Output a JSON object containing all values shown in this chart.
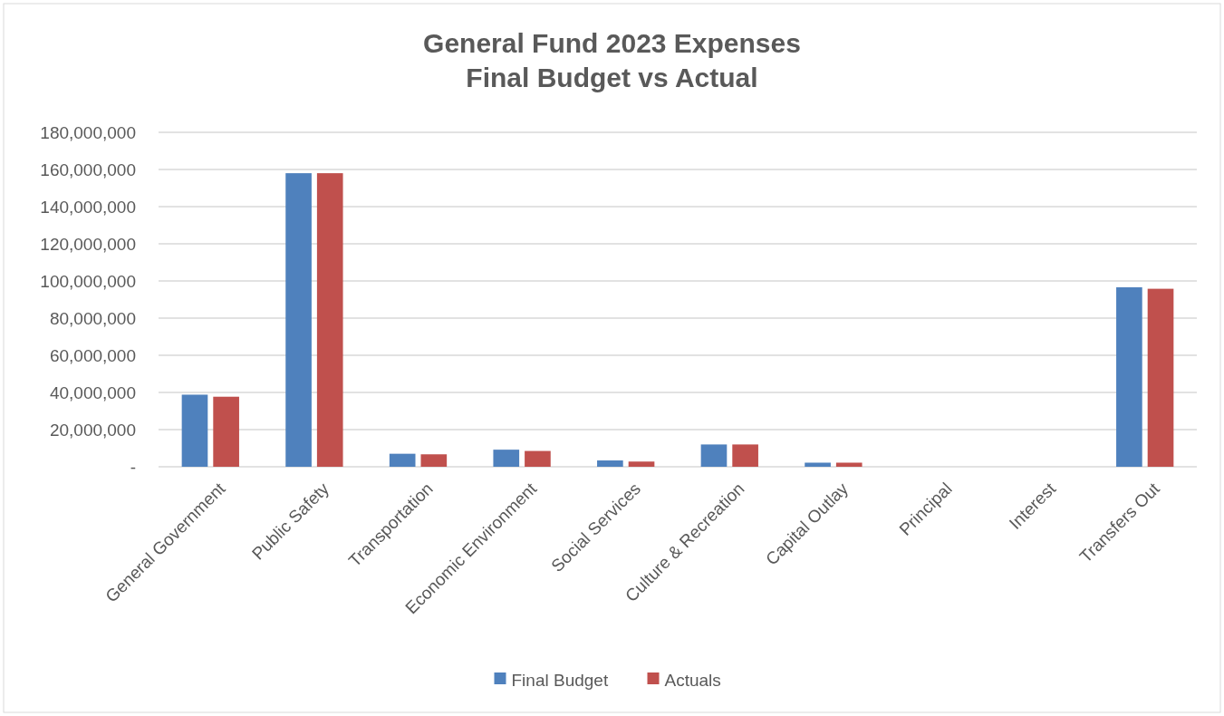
{
  "chart_data": {
    "type": "bar",
    "title": "General Fund 2023 Expenses\nFinal Budget vs Actual",
    "categories": [
      "General Government",
      "Public Safety",
      "Transportation",
      "Economic Environment",
      "Social Services",
      "Culture & Recreation",
      "Capital Outlay",
      "Principal",
      "Interest",
      "Transfers Out"
    ],
    "series": [
      {
        "name": "Final Budget",
        "color": "#4f81bd",
        "values": [
          38800000,
          158000000,
          7000000,
          9200000,
          3400000,
          12000000,
          2200000,
          0,
          0,
          96600000
        ]
      },
      {
        "name": "Actuals",
        "color": "#c0504d",
        "values": [
          37700000,
          158000000,
          6700000,
          8500000,
          2800000,
          12000000,
          2200000,
          0,
          0,
          95800000
        ]
      }
    ],
    "ylim": [
      0,
      180000000
    ],
    "yticks": [
      {
        "value": 0,
        "label": "-"
      },
      {
        "value": 20000000,
        "label": "20,000,000"
      },
      {
        "value": 40000000,
        "label": "40,000,000"
      },
      {
        "value": 60000000,
        "label": "60,000,000"
      },
      {
        "value": 80000000,
        "label": "80,000,000"
      },
      {
        "value": 100000000,
        "label": "100,000,000"
      },
      {
        "value": 120000000,
        "label": "120,000,000"
      },
      {
        "value": 140000000,
        "label": "140,000,000"
      },
      {
        "value": 160000000,
        "label": "160,000,000"
      },
      {
        "value": 180000000,
        "label": "180,000,000"
      }
    ],
    "grid": "y",
    "legend": "bottom"
  }
}
